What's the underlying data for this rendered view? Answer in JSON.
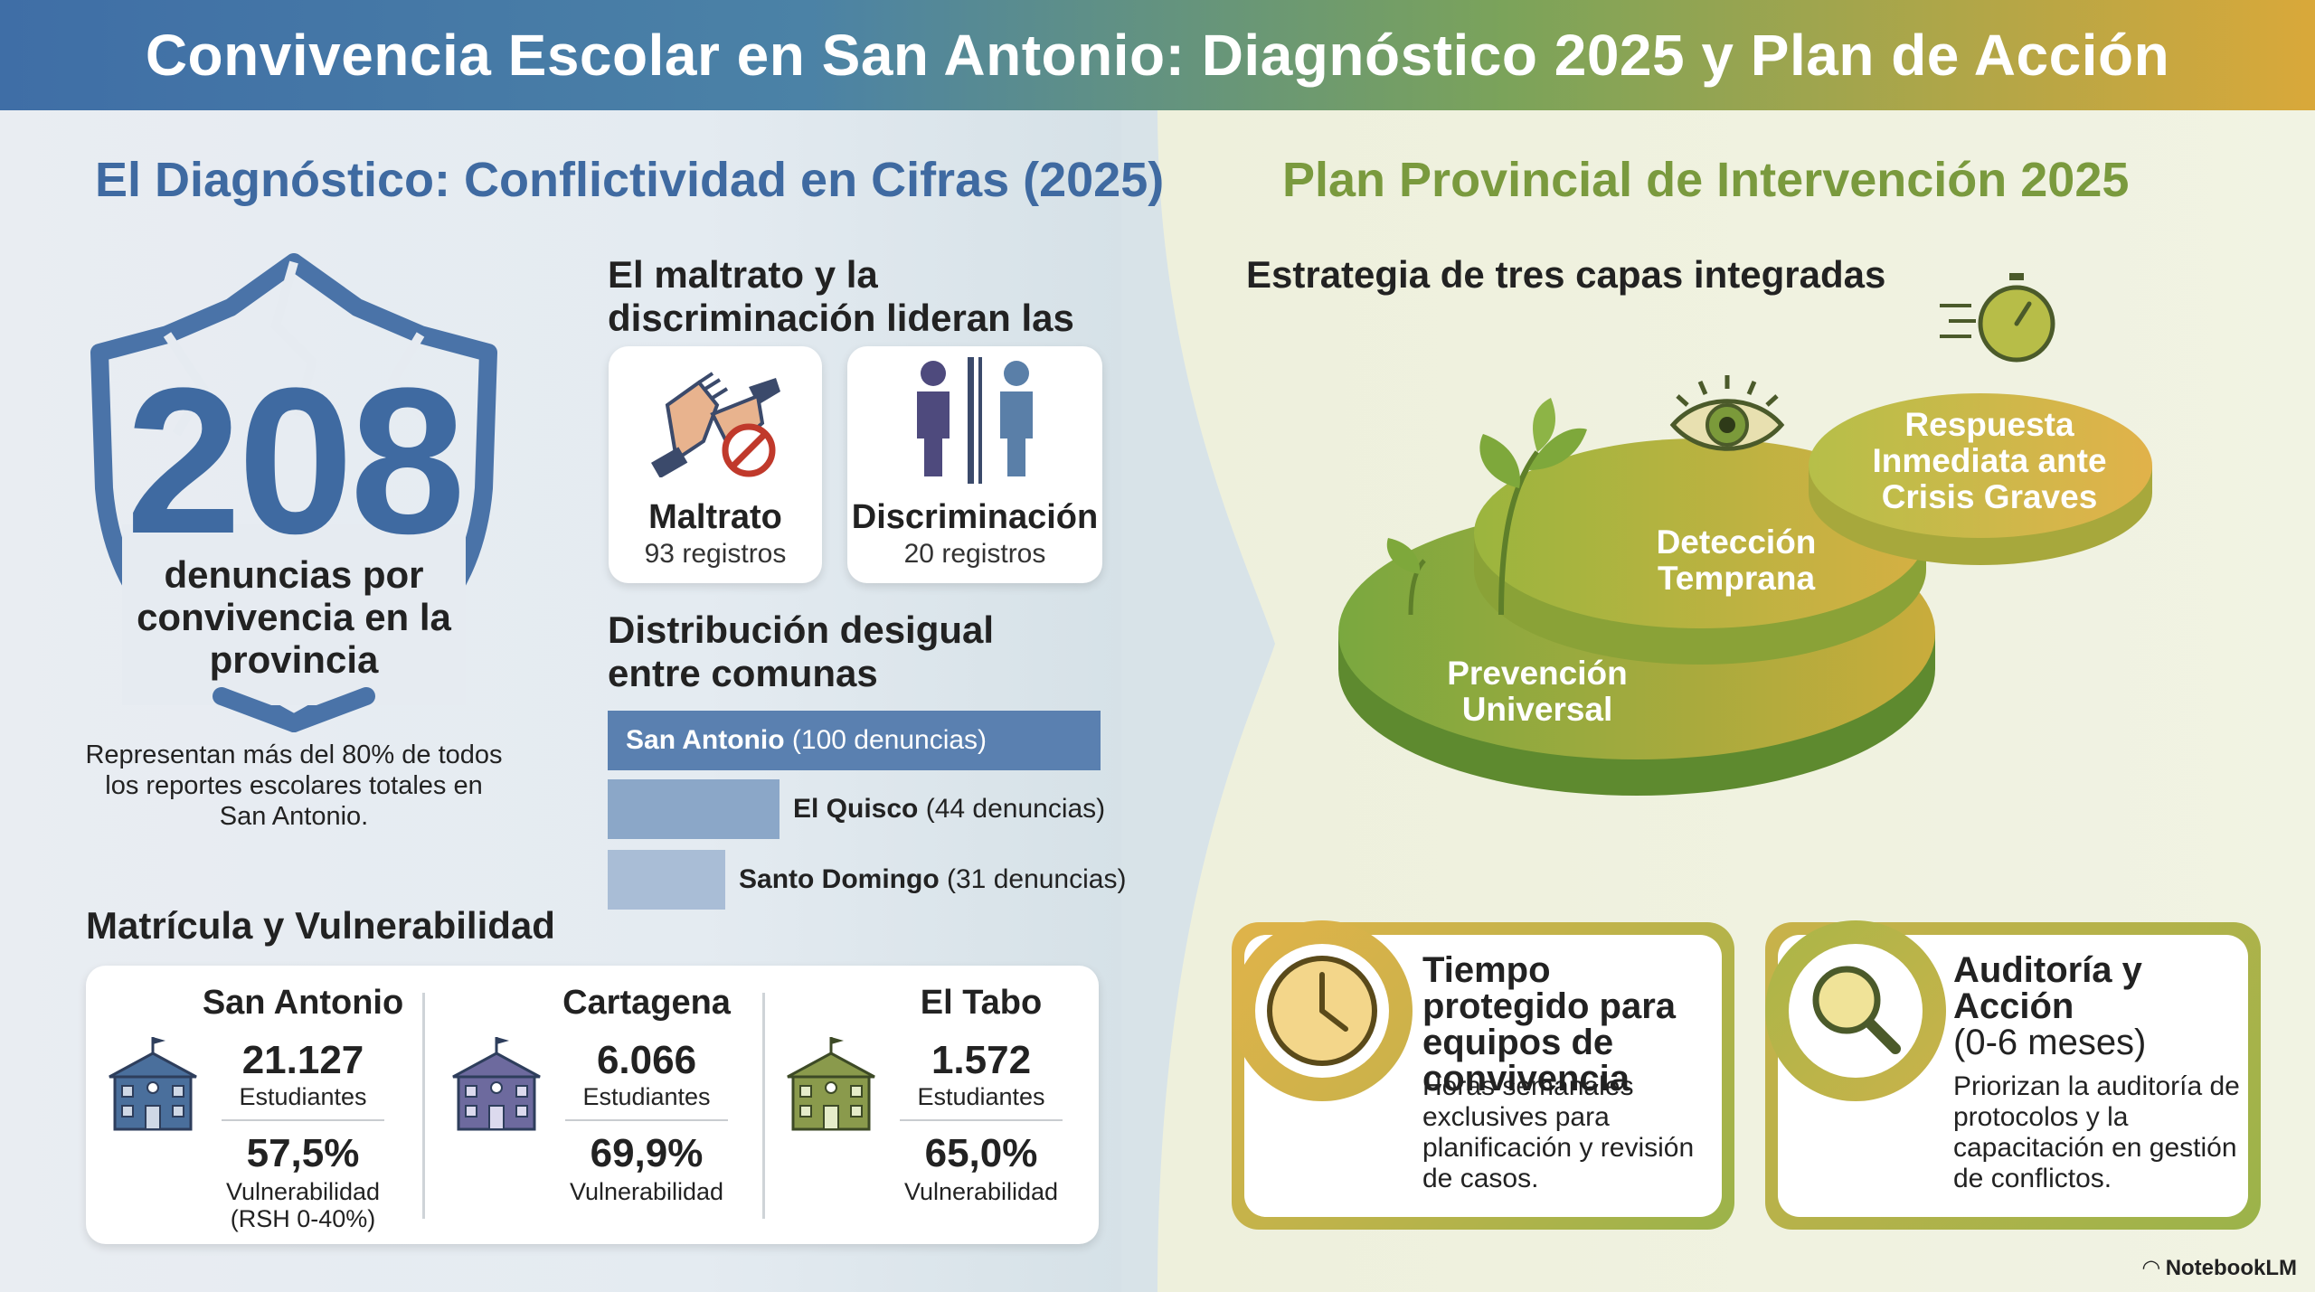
{
  "title": "Convivencia Escolar en San Antonio: Diagnóstico 2025 y Plan de Acción",
  "left": {
    "title": "El Diagnóstico: Conflictividad en Cifras (2025)",
    "shield": {
      "number": "208",
      "label": "denuncias por convivencia en la provincia",
      "note": "Representan más del 80% de todos los reportes escolares totales en San Antonio."
    },
    "causes": {
      "title": "El maltrato y la discriminación lideran las causas",
      "items": [
        {
          "name": "Maltrato",
          "count": "93 registros"
        },
        {
          "name": "Discriminación",
          "count": "20 registros"
        }
      ]
    },
    "distribution": {
      "title": "Distribución desigual entre comunas",
      "bars": [
        {
          "name": "San Antonio",
          "detail": "(100 denuncias)",
          "value": 100
        },
        {
          "name": "El Quisco",
          "detail": "(44 denuncias)",
          "value": 44
        },
        {
          "name": "Santo Domingo",
          "detail": "(31 denuncias)",
          "value": 31
        }
      ]
    },
    "enrollment": {
      "title": "Matrícula y Vulnerabilidad",
      "items": [
        {
          "name": "San Antonio",
          "students": "21.127",
          "students_label": "Estudiantes",
          "vuln": "57,5%",
          "vuln_label": "Vulnerabilidad (RSH 0-40%)",
          "color": "#4a6f9c"
        },
        {
          "name": "Cartagena",
          "students": "6.066",
          "students_label": "Estudiantes",
          "vuln": "69,9%",
          "vuln_label": "Vulnerabilidad",
          "color": "#6d6a9e"
        },
        {
          "name": "El Tabo",
          "students": "1.572",
          "students_label": "Estudiantes",
          "vuln": "65,0%",
          "vuln_label": "Vulnerabilidad",
          "color": "#8a9a4c"
        }
      ]
    }
  },
  "right": {
    "title": "Plan Provincial de Intervención 2025",
    "strategy_title": "Estrategia de tres capas integradas",
    "layers": [
      "Prevención Universal",
      "Detección Temprana",
      "Respuesta Inmediata ante Crisis Graves"
    ],
    "actions": [
      {
        "title": "Tiempo protegido para equipos de convivencia",
        "subtitle": "",
        "text": "Horas semanales exclusives para planificación y revisión de casos.",
        "icon": "clock-icon"
      },
      {
        "title": "Auditoría y Acción",
        "subtitle": "(0-6 meses)",
        "text": "Priorizan la auditoría de protocolos y la capacitación en gestión de conflictos.",
        "icon": "magnifier-icon"
      }
    ]
  },
  "brand": "NotebookLM"
}
